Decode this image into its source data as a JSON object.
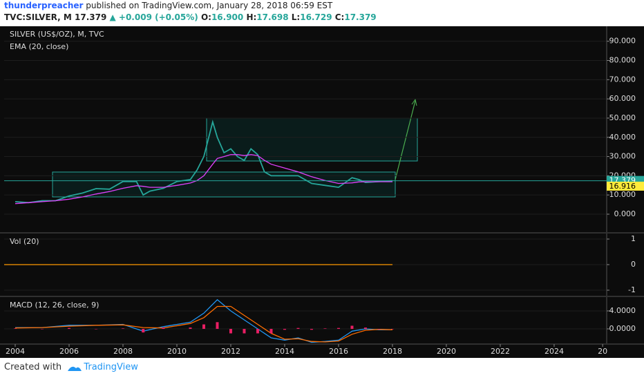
{
  "header": {
    "user": "thunderpreacher",
    "text": "published on TradingView.com, January 28, 2018 06:59 EST",
    "quote": {
      "symbol": "TVC:SILVER, M",
      "last": "17.379",
      "change": "▲ +0.009 (+0.05%)",
      "open": {
        "label": "O:",
        "value": "16.900"
      },
      "high": {
        "label": "H:",
        "value": "17.698"
      },
      "low": {
        "label": "L:",
        "value": "16.729"
      },
      "close": {
        "label": "C:",
        "value": "17.379"
      }
    }
  },
  "chart_data": [
    {
      "type": "line",
      "title": "SILVER (US$/OZ), M, TVC",
      "xlim": [
        2003.59,
        2025.95
      ],
      "ylim": [
        -9.35,
        97.8
      ],
      "yticks": [
        {
          "value": 0,
          "label": "0.000"
        },
        {
          "value": 10,
          "label": "10.000"
        },
        {
          "value": 20,
          "label": "20.000"
        },
        {
          "value": 30,
          "label": "30.000"
        },
        {
          "value": 40,
          "label": "40.000"
        },
        {
          "value": 50,
          "label": "50.000"
        },
        {
          "value": 60,
          "label": "60.000"
        },
        {
          "value": 70,
          "label": "70.000"
        },
        {
          "value": 80,
          "label": "80.000"
        },
        {
          "value": 90,
          "label": "90.000"
        }
      ],
      "x": [
        2004.0,
        2004.5,
        2005.0,
        2005.5,
        2006.0,
        2006.5,
        2007.0,
        2007.5,
        2008.0,
        2008.5,
        2008.75,
        2009.0,
        2009.5,
        2010.0,
        2010.5,
        2010.75,
        2011.0,
        2011.33,
        2011.5,
        2011.75,
        2012.0,
        2012.25,
        2012.5,
        2012.75,
        2013.0,
        2013.25,
        2013.5,
        2014.0,
        2014.5,
        2015.0,
        2015.5,
        2016.0,
        2016.5,
        2016.75,
        2017.0,
        2017.5,
        2018.0
      ],
      "series": [
        {
          "name": "SILVER (US$/OZ), M, TVC",
          "color": "#26a69a",
          "values": [
            6.5,
            6.0,
            7.0,
            7.0,
            9.5,
            11,
            13.3,
            13,
            17,
            17,
            10,
            12,
            13.5,
            17,
            18,
            23,
            30,
            48,
            40,
            32,
            34,
            30,
            28,
            34,
            31,
            22,
            20,
            20,
            20,
            16,
            15,
            14,
            19,
            18,
            16.5,
            17,
            17.379
          ]
        },
        {
          "name": "EMA (20, close)",
          "color": "#e040fb",
          "values": [
            5.5,
            6.0,
            6.5,
            7.0,
            7.8,
            9.0,
            10.5,
            11.8,
            13.5,
            14.8,
            14.5,
            14.0,
            14.0,
            15.0,
            16.2,
            17.5,
            20.0,
            26,
            29,
            30,
            31,
            31,
            30.5,
            31,
            30.5,
            28,
            26,
            24,
            22,
            19.5,
            17.5,
            16.0,
            16.3,
            16.8,
            16.9,
            16.9,
            16.916
          ]
        }
      ],
      "price_tags": [
        {
          "value": 17.379,
          "label": "17.379",
          "color": "#26a69a"
        },
        {
          "value": 16.916,
          "label": "16.916",
          "color": "#ffeb3b"
        }
      ],
      "grid": true
    },
    {
      "type": "line",
      "title": "Vol (20)",
      "xlim": [
        2003.59,
        2025.95
      ],
      "ylim": [
        -1.216,
        1.216
      ],
      "yticks": [
        -1,
        0,
        1
      ],
      "x": [
        2003.59,
        2018.0
      ],
      "series": [
        {
          "color": "#ff9800",
          "values": [
            0,
            0
          ]
        }
      ],
      "grid": true
    },
    {
      "type": "line",
      "title": "MACD (12, 26, close, 9)",
      "xlim": [
        2003.59,
        2025.95
      ],
      "ylim": [
        -3.23,
        7.08
      ],
      "yticks": [
        {
          "value": 0,
          "label": "0.0000"
        },
        {
          "value": 4,
          "label": "4.0000"
        }
      ],
      "xticks": [
        2004,
        2006,
        2008,
        2010,
        2012,
        2014,
        2016,
        2018,
        2020,
        2022,
        2024,
        {
          "value": 2025.8,
          "label": "20"
        }
      ],
      "x": [
        2004,
        2005,
        2006,
        2007,
        2008,
        2008.75,
        2009.5,
        2010.5,
        2011,
        2011.5,
        2012,
        2012.5,
        2013,
        2013.5,
        2014,
        2014.5,
        2015,
        2015.5,
        2016,
        2016.5,
        2017,
        2017.5,
        2018
      ],
      "series": [
        {
          "color": "#2196f3",
          "values": [
            0.3,
            0.3,
            0.8,
            0.8,
            1,
            -0.5,
            0.5,
            1.5,
            3.5,
            6.5,
            4,
            2,
            0,
            -2,
            -2.5,
            -2,
            -3,
            -2.8,
            -2.5,
            -0.5,
            0,
            -0.2,
            -0.2
          ]
        },
        {
          "color": "#ff6d00",
          "values": [
            0.2,
            0.3,
            0.6,
            0.8,
            0.9,
            0.3,
            0.2,
            1.2,
            2.5,
            5,
            5,
            3,
            1,
            -1,
            -2.3,
            -2.2,
            -2.8,
            -2.9,
            -2.7,
            -1.2,
            -0.3,
            -0.1,
            -0.2
          ]
        },
        {
          "color": "#e91e63",
          "kind": "histogram",
          "values": [
            0.1,
            0,
            0.2,
            0,
            0.1,
            -0.8,
            0.3,
            0.3,
            1,
            1.5,
            -1,
            -1,
            -1,
            -1,
            -0.2,
            0.2,
            -0.2,
            0.1,
            0.2,
            0.7,
            0.3,
            -0.1,
            0
          ]
        }
      ],
      "grid": true
    }
  ],
  "footer": {
    "prefix": "Created with",
    "brand": "TradingView"
  }
}
